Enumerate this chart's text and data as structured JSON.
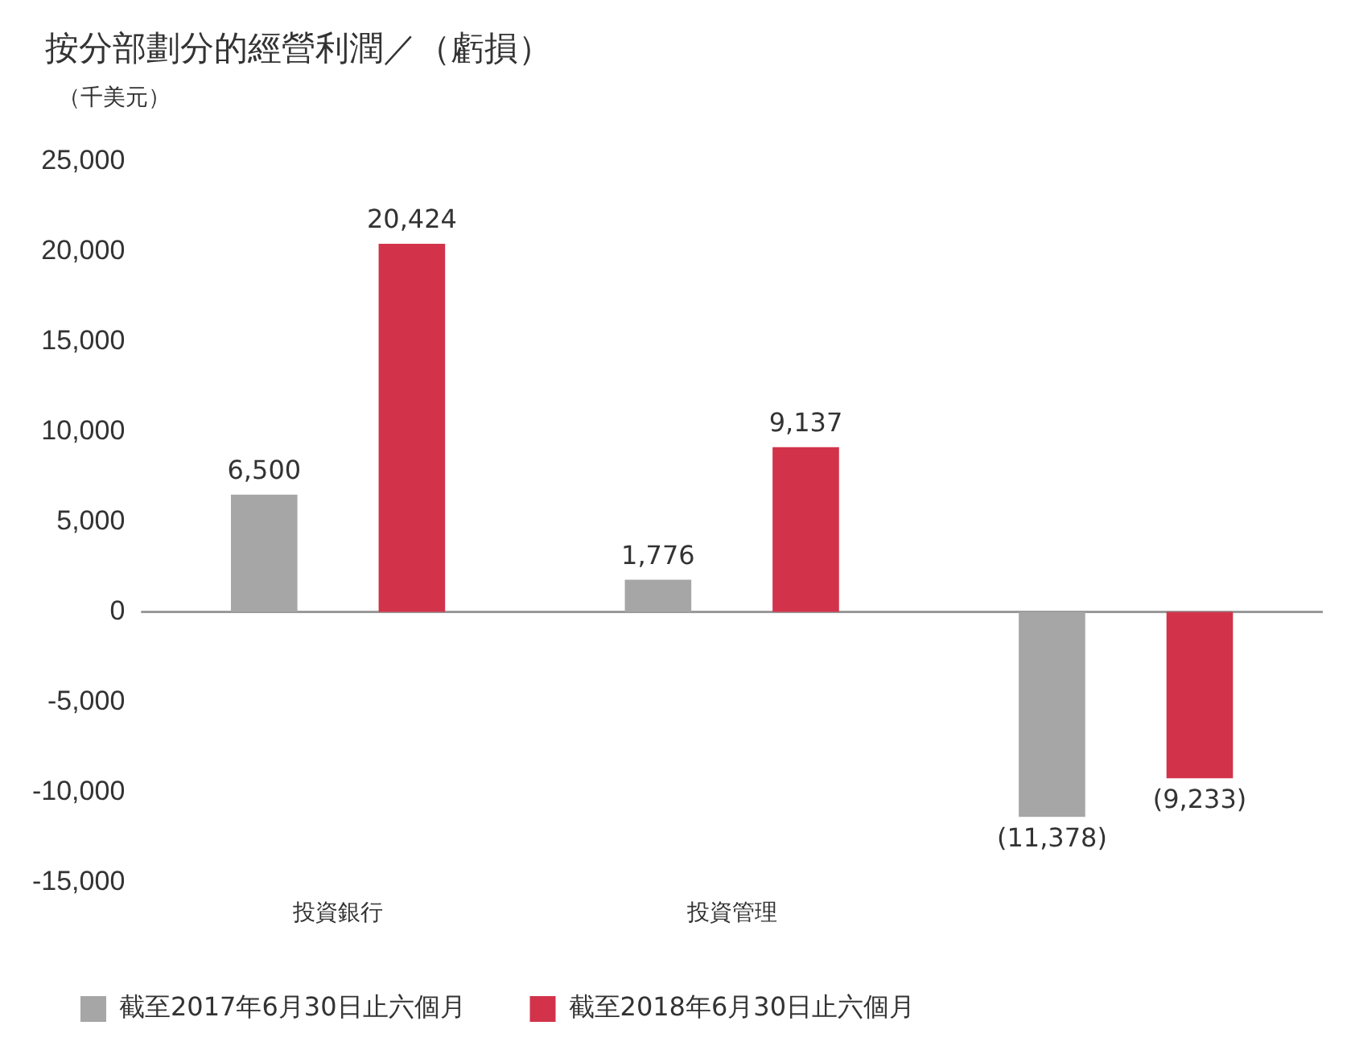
{
  "chart_data": {
    "type": "bar",
    "title": "按分部劃分的經營利潤／（虧損）",
    "subtitle": "（千美元）",
    "categories": [
      "投資銀行",
      "投資管理",
      null
    ],
    "series": [
      {
        "name": "截至2017年6月30日止六個月",
        "color": "#a6a6a6",
        "values": [
          6500,
          1776,
          -11378
        ],
        "value_labels": [
          "6,500",
          "1,776",
          "(11,378)"
        ]
      },
      {
        "name": "截至2018年6月30日止六個月",
        "color": "#d2334a",
        "values": [
          20424,
          9137,
          -9233
        ],
        "value_labels": [
          "20,424",
          "9,137",
          "(9,233)"
        ]
      }
    ],
    "ylim": [
      -15000,
      25000
    ],
    "yticks": [
      {
        "value": -15000,
        "label": "-15,000"
      },
      {
        "value": -10000,
        "label": "-10,000"
      },
      {
        "value": -5000,
        "label": "-5,000"
      },
      0,
      {
        "value": 5000,
        "label": "5,000"
      },
      {
        "value": 10000,
        "label": "10,000"
      },
      {
        "value": 15000,
        "label": "15,000"
      },
      {
        "value": 20000,
        "label": "20,000"
      },
      {
        "value": 25000,
        "label": "25,000"
      }
    ],
    "ref_lines": [
      {
        "axis": "y",
        "value": 0,
        "color": "#999999"
      }
    ],
    "grid": false,
    "legend": "bottom"
  }
}
